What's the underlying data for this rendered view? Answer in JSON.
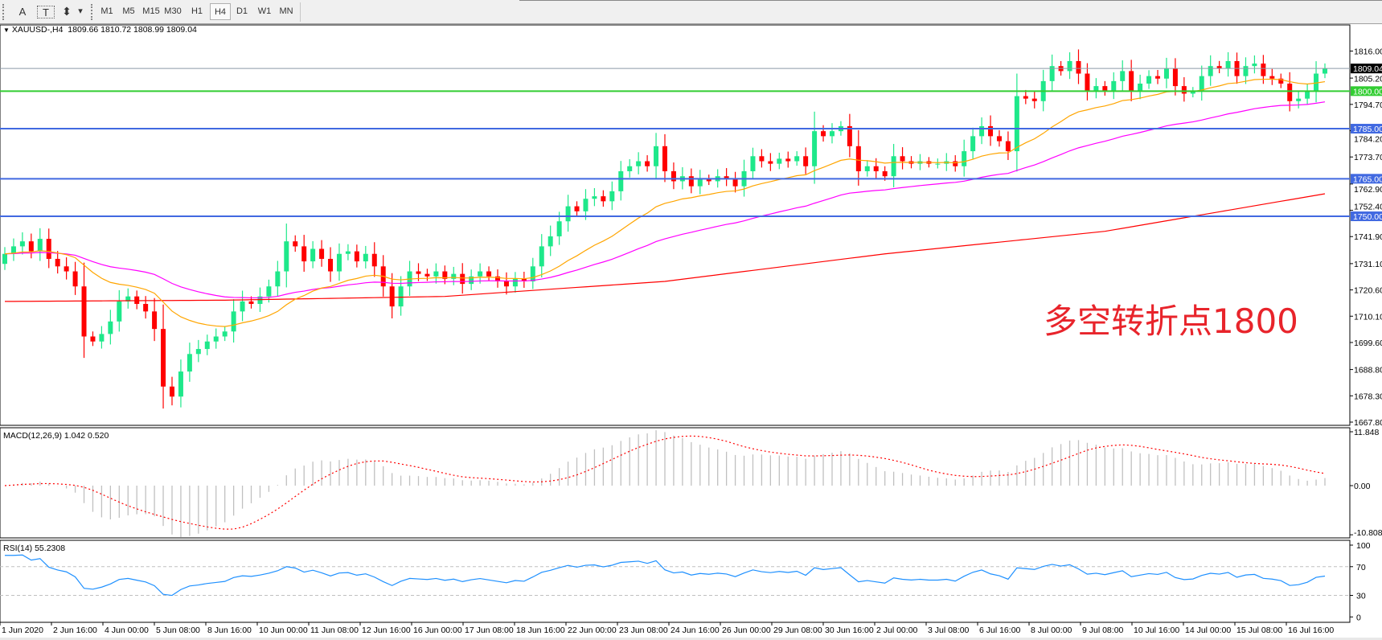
{
  "toolbar": {
    "tools": [
      {
        "label": "A",
        "icon": "text-label-icon"
      },
      {
        "label": "T",
        "icon": "text-box-icon"
      },
      {
        "label": "⬍",
        "icon": "arrows-icon"
      },
      {
        "label": "▾",
        "icon": "chevron-down-icon"
      }
    ],
    "timeframes": [
      "M1",
      "M5",
      "M15",
      "M30",
      "H1",
      "H4",
      "D1",
      "W1",
      "MN"
    ],
    "selected_timeframe": "H4"
  },
  "header": {
    "arrow": "▼",
    "symbol": "XAUUSD-,H4",
    "ohlc": "1809.66 1810.72 1808.99 1809.04"
  },
  "annotation": "多空转折点1800",
  "macd": {
    "label": "MACD(12,26,9) 1.042 0.520",
    "axis": [
      "11.848",
      "0.00",
      "-10.808"
    ],
    "range": [
      -10.808,
      11.848
    ],
    "hist_color": "#c0c0c0",
    "signal_color": "#ff0000"
  },
  "rsi": {
    "label": "RSI(14) 55.2308",
    "axis": [
      "100",
      "70",
      "30",
      "0"
    ],
    "levels": [
      70,
      30
    ],
    "color": "#1e90ff"
  },
  "chart_data": {
    "type": "candlestick",
    "symbol": "XAUUSD-",
    "timeframe": "H4",
    "ylim": [
      1666.5,
      1826.3
    ],
    "price_ticks": [
      "1816.00",
      "1805.20",
      "1794.70",
      "1784.20",
      "1773.70",
      "1762.90",
      "1752.40",
      "1741.90",
      "1731.10",
      "1720.60",
      "1710.10",
      "1699.60",
      "1688.80",
      "1678.30",
      "1667.80"
    ],
    "time_labels": [
      "1 Jun 2020",
      "2 Jun 16:00",
      "4 Jun 00:00",
      "5 Jun 08:00",
      "8 Jun 16:00",
      "10 Jun 00:00",
      "11 Jun 08:00",
      "12 Jun 16:00",
      "16 Jun 00:00",
      "17 Jun 08:00",
      "18 Jun 16:00",
      "22 Jun 00:00",
      "23 Jun 08:00",
      "24 Jun 16:00",
      "26 Jun 00:00",
      "29 Jun 08:00",
      "30 Jun 16:00",
      "2 Jul 00:00",
      "3 Jul 08:00",
      "6 Jul 16:00",
      "8 Jul 00:00",
      "9 Jul 08:00",
      "10 Jul 16:00",
      "14 Jul 00:00",
      "15 Jul 08:00",
      "16 Jul 16:00"
    ],
    "closes": [
      1735,
      1738,
      1740,
      1736,
      1741,
      1733,
      1730,
      1728,
      1722,
      1702,
      1700,
      1703,
      1708,
      1716,
      1718,
      1715,
      1712,
      1705,
      1682,
      1678,
      1688,
      1695,
      1697,
      1700,
      1702,
      1704,
      1712,
      1716,
      1715,
      1718,
      1722,
      1728,
      1740,
      1738,
      1732,
      1737,
      1733,
      1728,
      1735,
      1736,
      1732,
      1735,
      1730,
      1722,
      1714,
      1722,
      1728,
      1727,
      1726,
      1728,
      1725,
      1727,
      1723,
      1726,
      1728,
      1726,
      1724,
      1722,
      1725,
      1724,
      1730,
      1738,
      1742,
      1748,
      1754,
      1752,
      1757,
      1758,
      1756,
      1760,
      1768,
      1770,
      1772,
      1770,
      1778,
      1768,
      1764,
      1766,
      1762,
      1765,
      1764,
      1766,
      1765,
      1762,
      1768,
      1774,
      1772,
      1771,
      1773,
      1772,
      1774,
      1770,
      1784,
      1782,
      1784,
      1786,
      1778,
      1768,
      1770,
      1768,
      1766,
      1774,
      1772,
      1771,
      1772,
      1771,
      1771,
      1772,
      1770,
      1776,
      1782,
      1786,
      1782,
      1780,
      1776,
      1798,
      1797,
      1796,
      1804,
      1810,
      1808,
      1812,
      1807,
      1800,
      1802,
      1800,
      1804,
      1808,
      1800,
      1803,
      1806,
      1805,
      1809,
      1802,
      1799,
      1800,
      1806,
      1810,
      1809,
      1812,
      1806,
      1810,
      1811,
      1806,
      1805,
      1803,
      1796,
      1797,
      1800,
      1807,
      1809.04
    ],
    "first_open": 1731,
    "ma_fast_period": 20,
    "ma_mid_period": 50,
    "ma_slow_samples": [
      1716,
      1716.5,
      1718,
      1724,
      1735,
      1744,
      1759
    ],
    "colors": {
      "bull": "#1ee88a",
      "bear": "#ff0000",
      "ma_fast": "#ffa500",
      "ma_mid": "#ff00ff",
      "ma_slow": "#ff0000"
    },
    "levels": [
      {
        "price": 1809.04,
        "label": "1809.04",
        "color": "#8c9aa6",
        "label_bg": "#000000"
      },
      {
        "price": 1800,
        "label": "1800.00",
        "color": "#32cd32",
        "label_bg": "#32cd32"
      },
      {
        "price": 1785,
        "label": "1785.00",
        "color": "#4169e1",
        "label_bg": "#4169e1"
      },
      {
        "price": 1765,
        "label": "1765.00",
        "color": "#4169e1",
        "label_bg": "#4169e1"
      },
      {
        "price": 1750,
        "label": "1750.00",
        "color": "#4169e1",
        "label_bg": "#4169e1"
      }
    ]
  }
}
